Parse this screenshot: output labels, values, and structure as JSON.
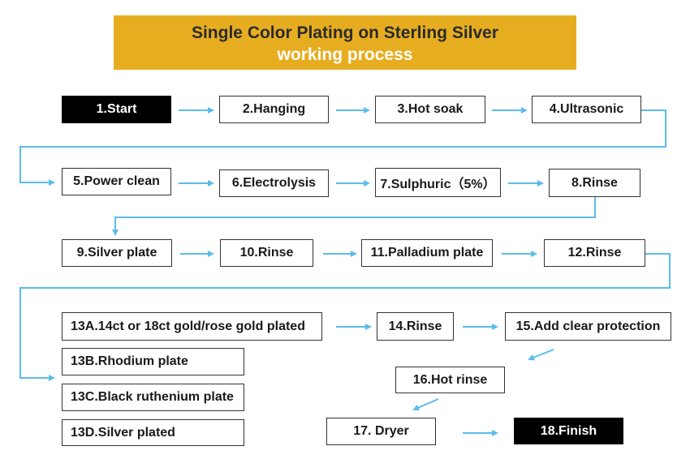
{
  "header": {
    "title": "Single Color Plating on Sterling Silver",
    "subtitle": "working process"
  },
  "steps": {
    "s1": "1.Start",
    "s2": "2.Hanging",
    "s3": "3.Hot soak",
    "s4": "4.Ultrasonic",
    "s5": "5.Power clean",
    "s6": "6.Electrolysis",
    "s7": "7.Sulphuric（5%）",
    "s8": "8.Rinse",
    "s9": "9.Silver plate",
    "s10": "10.Rinse",
    "s11": "11.Palladium plate",
    "s12": "12.Rinse",
    "s13a": "13A.14ct or 18ct gold/rose gold plated",
    "s13b": "13B.Rhodium plate",
    "s13c": "13C.Black ruthenium plate",
    "s13d": "13D.Silver plated",
    "s14": "14.Rinse",
    "s15": "15.Add clear protection",
    "s16": "16.Hot rinse",
    "s17": "17. Dryer",
    "s18": "18.Finish"
  },
  "colors": {
    "banner": "#e7ad21",
    "arrow": "#5bbcea",
    "terminal": "#000000"
  }
}
